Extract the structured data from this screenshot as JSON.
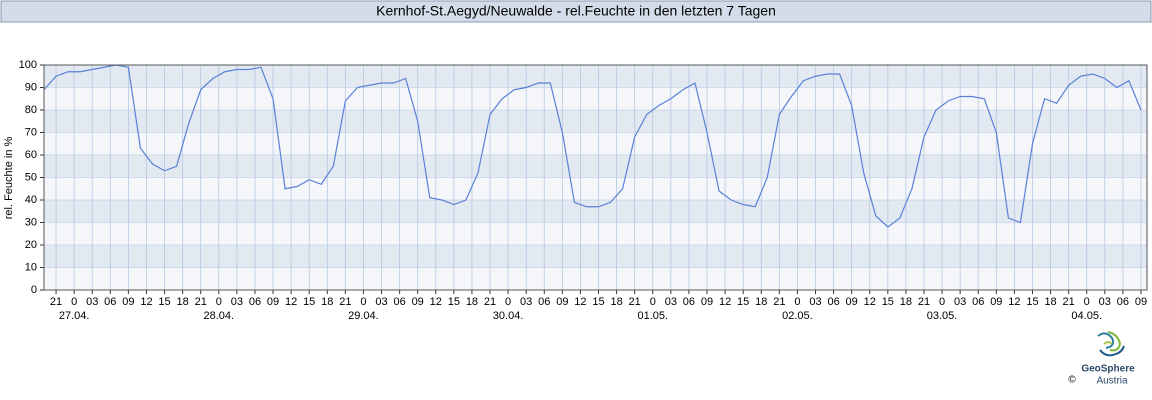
{
  "chart_data": {
    "type": "line",
    "title": "Kernhof-St.Aegyd/Neuwalde - rel.Feuchte in den letzten 7 Tagen",
    "y_label": "rel. Feuchte in %",
    "color": "#5b80d8",
    "band_colors": [
      "#f4f6fa",
      "#e3e9f1"
    ],
    "grid_color": "#b4c8e2",
    "grid": true,
    "ylim": [
      0,
      100
    ],
    "yticks": [
      0,
      10,
      20,
      30,
      40,
      50,
      60,
      70,
      80,
      90,
      100
    ],
    "xlim": [
      "26.04. 19:00",
      "04.05. 10:00"
    ],
    "xticks": [
      {
        "value": "26.04. 21:00",
        "label": "21"
      },
      {
        "value": "27.04. 00:00",
        "label": "0"
      },
      {
        "value": "27.04. 03:00",
        "label": "03"
      },
      {
        "value": "27.04. 06:00",
        "label": "06"
      },
      {
        "value": "27.04. 09:00",
        "label": "09"
      },
      {
        "value": "27.04. 12:00",
        "label": "12"
      },
      {
        "value": "27.04. 15:00",
        "label": "15"
      },
      {
        "value": "27.04. 18:00",
        "label": "18"
      },
      {
        "value": "27.04. 21:00",
        "label": "21"
      },
      {
        "value": "28.04. 00:00",
        "label": "0"
      },
      {
        "value": "28.04. 03:00",
        "label": "03"
      },
      {
        "value": "28.04. 06:00",
        "label": "06"
      },
      {
        "value": "28.04. 09:00",
        "label": "09"
      },
      {
        "value": "28.04. 12:00",
        "label": "12"
      },
      {
        "value": "28.04. 15:00",
        "label": "15"
      },
      {
        "value": "28.04. 18:00",
        "label": "18"
      },
      {
        "value": "28.04. 21:00",
        "label": "21"
      },
      {
        "value": "29.04. 00:00",
        "label": "0"
      },
      {
        "value": "29.04. 03:00",
        "label": "03"
      },
      {
        "value": "29.04. 06:00",
        "label": "06"
      },
      {
        "value": "29.04. 09:00",
        "label": "09"
      },
      {
        "value": "29.04. 12:00",
        "label": "12"
      },
      {
        "value": "29.04. 15:00",
        "label": "15"
      },
      {
        "value": "29.04. 18:00",
        "label": "18"
      },
      {
        "value": "29.04. 21:00",
        "label": "21"
      },
      {
        "value": "30.04. 00:00",
        "label": "0"
      },
      {
        "value": "30.04. 03:00",
        "label": "03"
      },
      {
        "value": "30.04. 06:00",
        "label": "06"
      },
      {
        "value": "30.04. 09:00",
        "label": "09"
      },
      {
        "value": "30.04. 12:00",
        "label": "12"
      },
      {
        "value": "30.04. 15:00",
        "label": "15"
      },
      {
        "value": "30.04. 18:00",
        "label": "18"
      },
      {
        "value": "30.04. 21:00",
        "label": "21"
      },
      {
        "value": "01.05. 00:00",
        "label": "0"
      },
      {
        "value": "01.05. 03:00",
        "label": "03"
      },
      {
        "value": "01.05. 06:00",
        "label": "06"
      },
      {
        "value": "01.05. 09:00",
        "label": "09"
      },
      {
        "value": "01.05. 12:00",
        "label": "12"
      },
      {
        "value": "01.05. 15:00",
        "label": "15"
      },
      {
        "value": "01.05. 18:00",
        "label": "18"
      },
      {
        "value": "01.05. 21:00",
        "label": "21"
      },
      {
        "value": "02.05. 00:00",
        "label": "0"
      },
      {
        "value": "02.05. 03:00",
        "label": "03"
      },
      {
        "value": "02.05. 06:00",
        "label": "06"
      },
      {
        "value": "02.05. 09:00",
        "label": "09"
      },
      {
        "value": "02.05. 12:00",
        "label": "12"
      },
      {
        "value": "02.05. 15:00",
        "label": "15"
      },
      {
        "value": "02.05. 18:00",
        "label": "18"
      },
      {
        "value": "02.05. 21:00",
        "label": "21"
      },
      {
        "value": "03.05. 00:00",
        "label": "0"
      },
      {
        "value": "03.05. 03:00",
        "label": "03"
      },
      {
        "value": "03.05. 06:00",
        "label": "06"
      },
      {
        "value": "03.05. 09:00",
        "label": "09"
      },
      {
        "value": "03.05. 12:00",
        "label": "12"
      },
      {
        "value": "03.05. 15:00",
        "label": "15"
      },
      {
        "value": "03.05. 18:00",
        "label": "18"
      },
      {
        "value": "03.05. 21:00",
        "label": "21"
      },
      {
        "value": "04.05. 00:00",
        "label": "0"
      },
      {
        "value": "04.05. 03:00",
        "label": "03"
      },
      {
        "value": "04.05. 06:00",
        "label": "06"
      },
      {
        "value": "04.05. 09:00",
        "label": "09"
      }
    ],
    "xdate_labels": [
      {
        "value": "27.04. 00:00",
        "label": "27.04."
      },
      {
        "value": "28.04. 00:00",
        "label": "28.04."
      },
      {
        "value": "29.04. 00:00",
        "label": "29.04."
      },
      {
        "value": "30.04. 00:00",
        "label": "30.04."
      },
      {
        "value": "01.05. 00:00",
        "label": "01.05."
      },
      {
        "value": "02.05. 00:00",
        "label": "02.05."
      },
      {
        "value": "03.05. 00:00",
        "label": "03.05."
      },
      {
        "value": "04.05. 00:00",
        "label": "04.05."
      }
    ],
    "x": [
      "26.04. 19:00",
      "26.04. 21:00",
      "26.04. 23:00",
      "27.04. 01:00",
      "27.04. 03:00",
      "27.04. 05:00",
      "27.04. 07:00",
      "27.04. 09:00",
      "27.04. 11:00",
      "27.04. 13:00",
      "27.04. 15:00",
      "27.04. 17:00",
      "27.04. 19:00",
      "27.04. 21:00",
      "27.04. 23:00",
      "28.04. 01:00",
      "28.04. 03:00",
      "28.04. 05:00",
      "28.04. 07:00",
      "28.04. 09:00",
      "28.04. 11:00",
      "28.04. 13:00",
      "28.04. 15:00",
      "28.04. 17:00",
      "28.04. 19:00",
      "28.04. 21:00",
      "28.04. 23:00",
      "29.04. 01:00",
      "29.04. 03:00",
      "29.04. 05:00",
      "29.04. 07:00",
      "29.04. 09:00",
      "29.04. 11:00",
      "29.04. 13:00",
      "29.04. 15:00",
      "29.04. 17:00",
      "29.04. 19:00",
      "29.04. 21:00",
      "29.04. 23:00",
      "30.04. 01:00",
      "30.04. 03:00",
      "30.04. 05:00",
      "30.04. 07:00",
      "30.04. 09:00",
      "30.04. 11:00",
      "30.04. 13:00",
      "30.04. 15:00",
      "30.04. 17:00",
      "30.04. 19:00",
      "30.04. 21:00",
      "30.04. 23:00",
      "01.05. 01:00",
      "01.05. 03:00",
      "01.05. 05:00",
      "01.05. 07:00",
      "01.05. 09:00",
      "01.05. 11:00",
      "01.05. 13:00",
      "01.05. 15:00",
      "01.05. 17:00",
      "01.05. 19:00",
      "01.05. 21:00",
      "01.05. 23:00",
      "02.05. 01:00",
      "02.05. 03:00",
      "02.05. 05:00",
      "02.05. 07:00",
      "02.05. 09:00",
      "02.05. 11:00",
      "02.05. 13:00",
      "02.05. 15:00",
      "02.05. 17:00",
      "02.05. 19:00",
      "02.05. 21:00",
      "02.05. 23:00",
      "03.05. 01:00",
      "03.05. 03:00",
      "03.05. 05:00",
      "03.05. 07:00",
      "03.05. 09:00",
      "03.05. 11:00",
      "03.05. 13:00",
      "03.05. 15:00",
      "03.05. 17:00",
      "03.05. 19:00",
      "03.05. 21:00",
      "03.05. 23:00",
      "04.05. 01:00",
      "04.05. 03:00",
      "04.05. 05:00",
      "04.05. 07:00",
      "04.05. 09:00"
    ],
    "values": [
      89,
      95,
      97,
      97,
      98,
      99,
      100,
      99,
      63,
      56,
      53,
      55,
      74,
      89,
      94,
      97,
      98,
      98,
      99,
      85,
      45,
      46,
      49,
      47,
      55,
      84,
      90,
      91,
      92,
      92,
      94,
      75,
      41,
      40,
      38,
      40,
      52,
      78,
      85,
      89,
      90,
      92,
      92,
      70,
      39,
      37,
      37,
      39,
      45,
      68,
      78,
      82,
      85,
      89,
      92,
      70,
      44,
      40,
      38,
      37,
      50,
      78,
      86,
      93,
      95,
      96,
      96,
      82,
      52,
      33,
      28,
      32,
      45,
      68,
      80,
      84,
      86,
      86,
      85,
      70,
      32,
      30,
      65,
      85,
      83,
      91,
      95,
      96,
      94,
      90,
      93,
      80
    ]
  },
  "logo": {
    "name": "GeoSphere",
    "sub": "Austria",
    "copyright": "©"
  }
}
